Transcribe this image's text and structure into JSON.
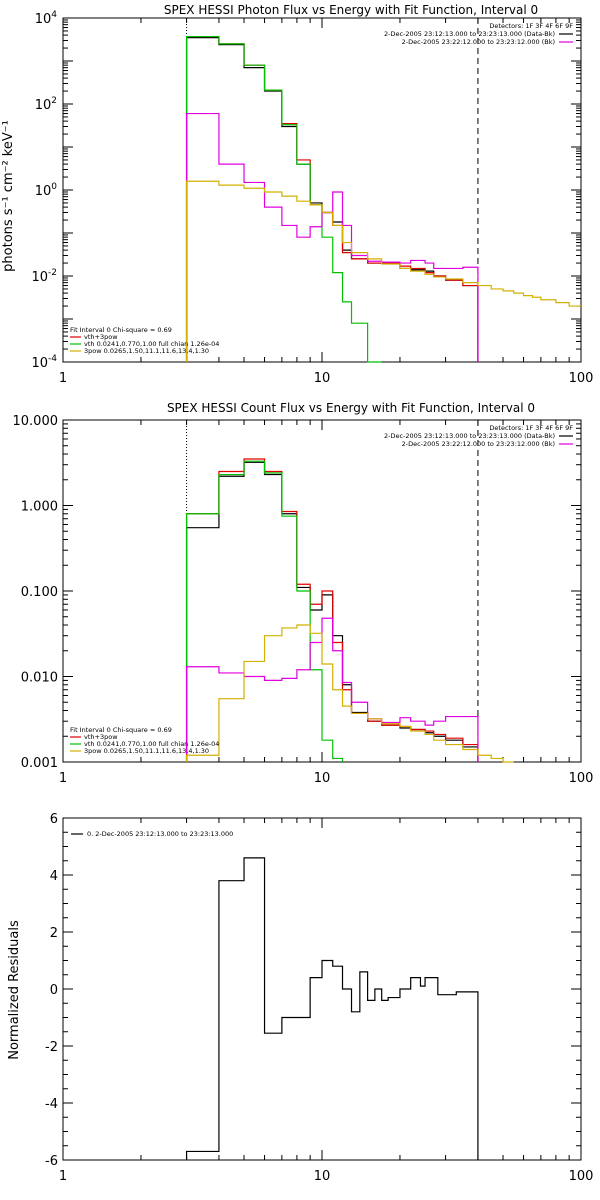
{
  "chart_data": [
    {
      "id": "photon",
      "type": "line",
      "step": true,
      "title": "SPEX HESSI Photon Flux vs Energy with Fit Function, Interval 0",
      "xlabel": "",
      "ylabel": "photons s⁻¹ cm⁻² keV⁻¹",
      "xscale": "log",
      "yscale": "log",
      "xlim": [
        1,
        100
      ],
      "ylim": [
        0.0001,
        10000
      ],
      "xticks": [
        {
          "v": 1,
          "label": "1"
        },
        {
          "v": 10,
          "label": "10"
        },
        {
          "v": 100,
          "label": "100"
        }
      ],
      "yticks": [
        {
          "v": 0.0001,
          "base": "10",
          "exp": "-4"
        },
        {
          "v": 0.01,
          "base": "10",
          "exp": "-2"
        },
        {
          "v": 1,
          "base": "10",
          "exp": "0"
        },
        {
          "v": 100,
          "base": "10",
          "exp": "2"
        },
        {
          "v": 10000,
          "base": "10",
          "exp": "4"
        }
      ],
      "vlines": [
        {
          "x": 3,
          "style": "dotted",
          "color": "#000000"
        },
        {
          "x": 40,
          "style": "dashed",
          "color": "#000000"
        }
      ],
      "legend_top": {
        "placement": "top-right",
        "lines": [
          {
            "text": "Detectors: 1F 3F 4F 6F 9F",
            "color": null
          },
          {
            "text": "2-Dec-2005 23:12:13.000 to 23:23:13.000 (Data-Bk)",
            "color": "#000000"
          },
          {
            "text": "2-Dec-2005 23:22:12.000 to 23:23:12.000 (Bk)",
            "color": "#e000e0"
          }
        ]
      },
      "legend_bottom": {
        "placement": "bottom-left",
        "header": "Fit Interval  0    Chi-square = 0.69",
        "lines": [
          {
            "text": "vth+3pow",
            "color": "#e00000"
          },
          {
            "text": "vth 0.0241,0.770,1.00  full chian 1.26e-04",
            "color": "#00c000"
          },
          {
            "text": "3pow 0.0265,1.50,11.1,11.6,13.4,1.30",
            "color": "#d4b000"
          }
        ]
      },
      "series": [
        {
          "color": "#000000",
          "edges": [
            3,
            4,
            5,
            6,
            7,
            8,
            9,
            10,
            11,
            12,
            13,
            15,
            17,
            20,
            22,
            25,
            27,
            30,
            35,
            40
          ],
          "values": [
            3500,
            2400,
            700,
            200,
            30,
            4,
            0.5,
            0.3,
            0.18,
            0.04,
            0.025,
            0.02,
            0.02,
            0.015,
            0.014,
            0.013,
            0.01,
            0.008,
            0.006
          ]
        },
        {
          "color": "#e00000",
          "edges": [
            3,
            4,
            5,
            6,
            7,
            8,
            9,
            10,
            11,
            12,
            13,
            15,
            17,
            20,
            22,
            25,
            27,
            30,
            35,
            40
          ],
          "values": [
            3700,
            2500,
            800,
            210,
            35,
            5,
            0.45,
            0.3,
            0.15,
            0.035,
            0.025,
            0.02,
            0.02,
            0.017,
            0.015,
            0.012,
            0.01,
            0.008,
            0.006
          ]
        },
        {
          "color": "#00c000",
          "edges": [
            3,
            4,
            5,
            6,
            7,
            8,
            9,
            10,
            11,
            12,
            13,
            15,
            17
          ],
          "values": [
            3700,
            2500,
            800,
            210,
            33,
            4,
            0.45,
            0.08,
            0.012,
            0.0025,
            0.0008,
            0.0001
          ]
        },
        {
          "color": "#e000e0",
          "edges": [
            3,
            4,
            5,
            6,
            7,
            8,
            9,
            10,
            11,
            12,
            13,
            15,
            17,
            20,
            22,
            25,
            27,
            30,
            35,
            40
          ],
          "values": [
            60,
            4,
            1.5,
            0.4,
            0.15,
            0.08,
            0.14,
            0.3,
            0.9,
            0.15,
            0.03,
            0.022,
            0.021,
            0.02,
            0.023,
            0.02,
            0.015,
            0.015,
            0.016
          ]
        },
        {
          "color": "#d4b000",
          "edges": [
            3,
            4,
            5,
            6,
            7,
            8,
            9,
            10,
            11,
            12,
            13,
            15,
            17,
            20,
            22,
            25,
            27,
            30,
            35,
            40,
            45,
            50,
            55,
            60,
            65,
            70,
            80,
            90,
            100
          ],
          "values": [
            1.6,
            1.3,
            1.1,
            0.9,
            0.72,
            0.55,
            0.45,
            0.3,
            0.15,
            0.06,
            0.035,
            0.025,
            0.019,
            0.015,
            0.013,
            0.011,
            0.0095,
            0.0085,
            0.007,
            0.006,
            0.005,
            0.0045,
            0.004,
            0.0035,
            0.0032,
            0.0028,
            0.0024,
            0.002
          ]
        }
      ]
    },
    {
      "id": "count",
      "type": "line",
      "step": true,
      "title": "SPEX HESSI Count Flux vs Energy with Fit Function, Interval 0",
      "xlabel": "",
      "ylabel": "",
      "xscale": "log",
      "yscale": "log",
      "xlim": [
        1,
        100
      ],
      "ylim": [
        0.001,
        10
      ],
      "xticks": [
        {
          "v": 1,
          "label": "1"
        },
        {
          "v": 10,
          "label": "10"
        },
        {
          "v": 100,
          "label": "100"
        }
      ],
      "yticks": [
        {
          "v": 0.001,
          "label": "0.001"
        },
        {
          "v": 0.01,
          "label": "0.010"
        },
        {
          "v": 0.1,
          "label": "0.100"
        },
        {
          "v": 1,
          "label": "1.000"
        },
        {
          "v": 10,
          "label": "10.000"
        }
      ],
      "vlines": [
        {
          "x": 3,
          "style": "dotted",
          "color": "#000000"
        },
        {
          "x": 40,
          "style": "dashed",
          "color": "#000000"
        }
      ],
      "legend_top": {
        "placement": "top-right",
        "lines": [
          {
            "text": "Detectors: 1F 3F 4F 6F 9F",
            "color": null
          },
          {
            "text": "2-Dec-2005 23:12:13.000 to 23:23:13.000 (Data-Bk)",
            "color": "#000000"
          },
          {
            "text": "2-Dec-2005 23:22:12.000 to 23:23:12.000 (Bk)",
            "color": "#e000e0"
          }
        ]
      },
      "legend_bottom": {
        "placement": "bottom-left",
        "header": "Fit Interval  0    Chi-square = 0.69",
        "lines": [
          {
            "text": "vth+3pow",
            "color": "#e00000"
          },
          {
            "text": "vth 0.0241,0.770,1.00  full chian 1.26e-04",
            "color": "#00c000"
          },
          {
            "text": "3pow 0.0265,1.50,11.1,11.6,13.4,1.30",
            "color": "#d4b000"
          }
        ]
      },
      "series": [
        {
          "color": "#000000",
          "edges": [
            3,
            4,
            5,
            6,
            7,
            8,
            9,
            10,
            11,
            12,
            13,
            15,
            17,
            20,
            22,
            25,
            27,
            30,
            35,
            40
          ],
          "values": [
            0.55,
            2.2,
            3.2,
            2.3,
            0.8,
            0.11,
            0.06,
            0.09,
            0.03,
            0.008,
            0.0038,
            0.003,
            0.0027,
            0.0025,
            0.0024,
            0.0022,
            0.002,
            0.0018,
            0.0015
          ]
        },
        {
          "color": "#e00000",
          "edges": [
            3,
            4,
            5,
            6,
            7,
            8,
            9,
            10,
            11,
            12,
            13,
            15,
            17,
            20,
            22,
            25,
            27,
            30,
            35,
            40
          ],
          "values": [
            0.8,
            2.5,
            3.5,
            2.5,
            0.85,
            0.12,
            0.07,
            0.1,
            0.025,
            0.007,
            0.0037,
            0.003,
            0.0027,
            0.0026,
            0.0024,
            0.0023,
            0.0021,
            0.0019,
            0.0016
          ]
        },
        {
          "color": "#00c000",
          "edges": [
            3,
            4,
            5,
            6,
            7,
            8,
            9,
            10,
            11,
            12
          ],
          "values": [
            0.8,
            2.3,
            3.3,
            2.4,
            0.75,
            0.1,
            0.012,
            0.0018,
            0.0011
          ]
        },
        {
          "color": "#e000e0",
          "edges": [
            3,
            4,
            5,
            6,
            7,
            8,
            9,
            10,
            11,
            12,
            13,
            15,
            17,
            20,
            22,
            25,
            27,
            30,
            35,
            40
          ],
          "values": [
            0.013,
            0.011,
            0.01,
            0.009,
            0.0095,
            0.012,
            0.025,
            0.048,
            0.02,
            0.0085,
            0.005,
            0.0032,
            0.0029,
            0.0033,
            0.003,
            0.0027,
            0.003,
            0.0034,
            0.0034
          ]
        },
        {
          "color": "#d4b000",
          "edges": [
            3,
            4,
            5,
            6,
            7,
            8,
            9,
            10,
            11,
            12,
            13,
            15,
            17,
            20,
            22,
            25,
            27,
            30,
            35,
            40,
            45,
            50,
            55
          ],
          "values": [
            0.0012,
            0.0055,
            0.015,
            0.03,
            0.037,
            0.04,
            0.032,
            0.014,
            0.007,
            0.0045,
            0.0037,
            0.0032,
            0.0028,
            0.0026,
            0.0023,
            0.0021,
            0.0018,
            0.0016,
            0.0014,
            0.0012,
            0.0011,
            0.001
          ]
        }
      ]
    },
    {
      "id": "resid",
      "type": "line",
      "step": true,
      "title": "",
      "xlabel": "",
      "ylabel": "Normalized Residuals",
      "xscale": "log",
      "yscale": "linear",
      "xlim": [
        1,
        100
      ],
      "ylim": [
        -6,
        6
      ],
      "xticks": [
        {
          "v": 1,
          "label": "1"
        },
        {
          "v": 10,
          "label": "10"
        },
        {
          "v": 100,
          "label": "100"
        }
      ],
      "yticks": [
        {
          "v": -6,
          "label": "-6"
        },
        {
          "v": -4,
          "label": "-4"
        },
        {
          "v": -2,
          "label": "-2"
        },
        {
          "v": 0,
          "label": "0"
        },
        {
          "v": 2,
          "label": "2"
        },
        {
          "v": 4,
          "label": "4"
        },
        {
          "v": 6,
          "label": "6"
        }
      ],
      "legend_top": {
        "placement": "top-left",
        "lines": [
          {
            "text": "0.  2-Dec-2005 23:12:13.000 to 23:23:13.000",
            "color": "#000000"
          }
        ]
      },
      "series": [
        {
          "color": "#000000",
          "edges": [
            3,
            4,
            5,
            6,
            7,
            8,
            9,
            10,
            11,
            12,
            13,
            14,
            15,
            16,
            17,
            18,
            20,
            22,
            24,
            25,
            27,
            28,
            30,
            33,
            35,
            40
          ],
          "values": [
            -5.7,
            3.8,
            4.6,
            -1.55,
            -1.0,
            -1.0,
            0.4,
            1.0,
            0.8,
            0.0,
            -0.8,
            0.6,
            -0.4,
            0.0,
            -0.4,
            -0.3,
            0.0,
            0.4,
            0.1,
            0.4,
            0.4,
            -0.2,
            -0.2,
            -0.1,
            -0.1
          ],
          "drop_to": -6
        }
      ]
    }
  ]
}
